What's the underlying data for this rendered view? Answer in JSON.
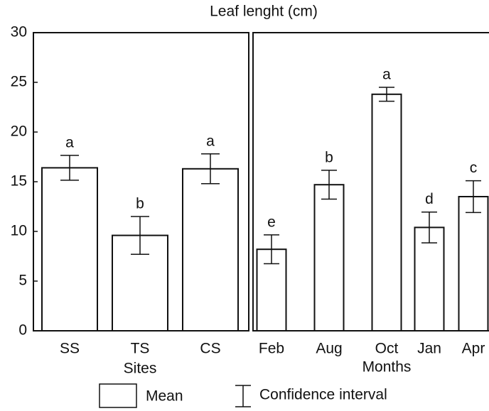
{
  "title": "Leaf lenght (cm)",
  "legend": {
    "mean": "Mean",
    "interval": "Confidence interval"
  },
  "chart_data": [
    {
      "type": "bar",
      "xlabel": "Sites",
      "categories": [
        "SS",
        "TS",
        "CS"
      ],
      "values": [
        16.4,
        9.6,
        16.3
      ],
      "errors": [
        1.25,
        1.9,
        1.5
      ],
      "annotations": [
        "a",
        "b",
        "a"
      ],
      "ylim": [
        0,
        30
      ],
      "yticks": [
        0,
        5,
        10,
        15,
        20,
        25,
        30
      ]
    },
    {
      "type": "bar",
      "xlabel": "Months",
      "categories": [
        "Feb",
        "Aug",
        "Oct",
        "Jan",
        "Apr"
      ],
      "values": [
        8.2,
        14.7,
        23.8,
        10.4,
        13.5
      ],
      "errors": [
        1.45,
        1.45,
        0.7,
        1.55,
        1.6
      ],
      "annotations": [
        "e",
        "b",
        "a",
        "d",
        "c"
      ],
      "ylim": [
        0,
        30
      ]
    }
  ]
}
